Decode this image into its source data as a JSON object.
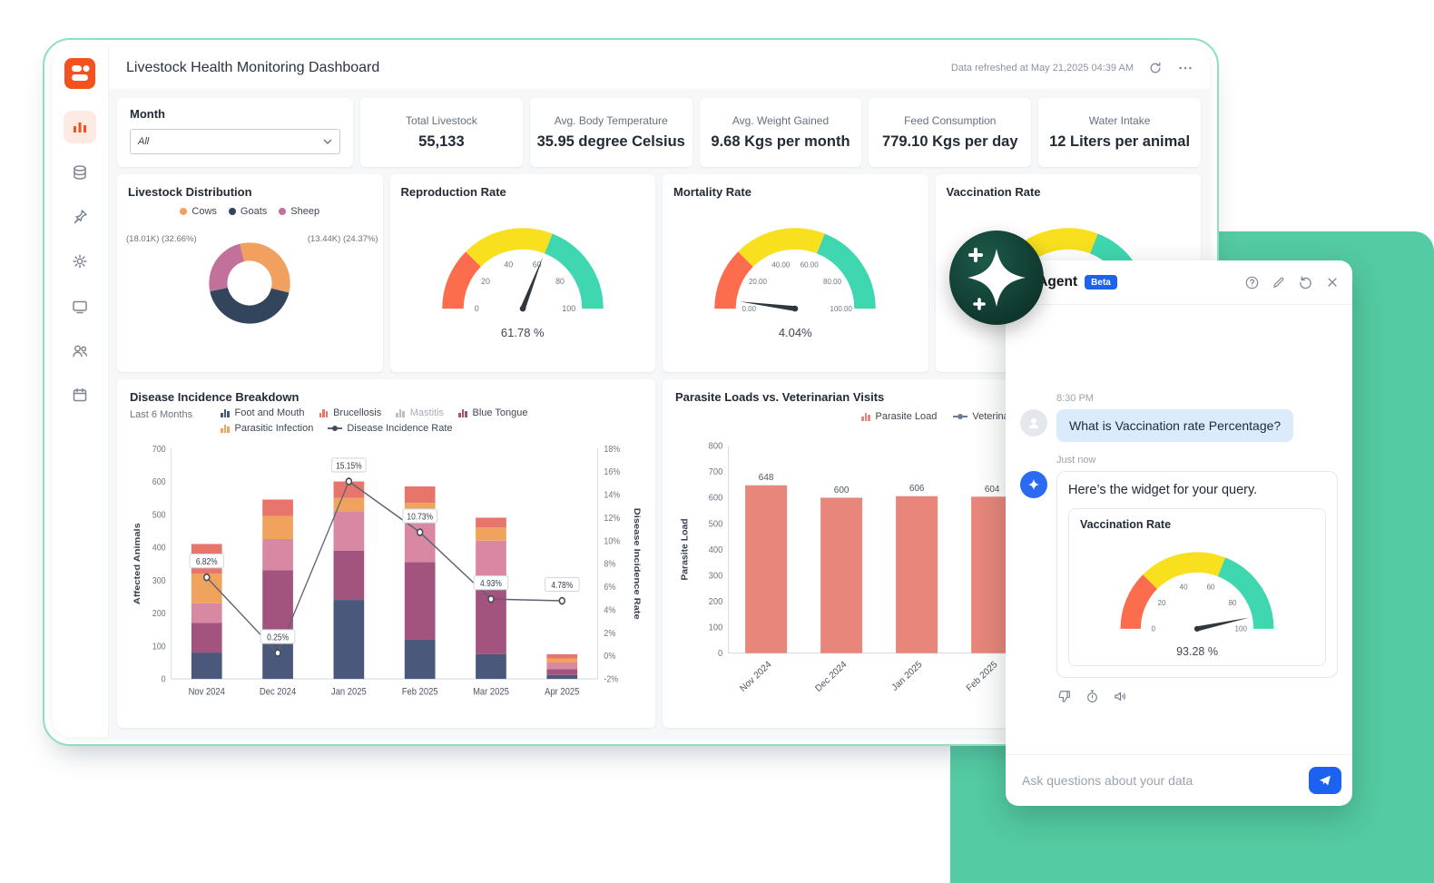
{
  "window": {
    "title": "Livestock Health Monitoring Dashboard",
    "refreshed": "Data refreshed at May 21,2025 04:39 AM"
  },
  "filters": {
    "month_label": "Month",
    "month_value": "All"
  },
  "kpis": [
    {
      "label": "Total Livestock",
      "value": "55,133"
    },
    {
      "label": "Avg. Body Temperature",
      "value": "35.95 degree Celsius"
    },
    {
      "label": "Avg. Weight Gained",
      "value": "9.68 Kgs per month"
    },
    {
      "label": "Feed Consumption",
      "value": "779.10 Kgs per day"
    },
    {
      "label": "Water Intake",
      "value": "12 Liters per animal"
    }
  ],
  "cards": {
    "distribution": "Livestock Distribution",
    "reproduction": "Reproduction Rate",
    "mortality": "Mortality Rate",
    "vaccination": "Vaccination Rate",
    "disease": "Disease Incidence Breakdown",
    "disease_subtitle": "Last 6 Months",
    "parasite": "Parasite Loads vs. Veterinarian Visits"
  },
  "chart_data": {
    "livestock_distribution": {
      "type": "pie",
      "title": "Livestock Distribution",
      "slices": [
        {
          "label": "Cows",
          "percent": 32.66,
          "count_label": "(18.01K) (32.66%)",
          "color": "#F2A05F"
        },
        {
          "label": "Goats",
          "percent": 42.97,
          "color": "#32455C"
        },
        {
          "label": "Sheep",
          "percent": 24.37,
          "count_label": "(13.44K) (24.37%)",
          "color": "#C2719A"
        }
      ],
      "callout_left": "(18.01K) (32.66%)",
      "callout_right": "(13.44K) (24.37%)"
    },
    "reproduction_rate": {
      "type": "gauge",
      "title": "Reproduction Rate",
      "min": 0,
      "max": 100,
      "value": 61.78,
      "value_text": "61.78 %",
      "ticks": [
        "0",
        "20",
        "40",
        "60",
        "80",
        "100"
      ],
      "bands": [
        {
          "to": 25,
          "color": "#FB6D4C"
        },
        {
          "to": 62,
          "color": "#F8E01E"
        },
        {
          "to": 100,
          "color": "#3ED7AF"
        }
      ]
    },
    "mortality_rate": {
      "type": "gauge",
      "title": "Mortality Rate",
      "min": 0,
      "max": 100,
      "value": 4.04,
      "value_text": "4.04%",
      "ticks": [
        "0.00",
        "20.00",
        "40.00",
        "60.00",
        "80.00",
        "100.00"
      ],
      "bands": [
        {
          "to": 25,
          "color": "#FB6D4C"
        },
        {
          "to": 62,
          "color": "#F8E01E"
        },
        {
          "to": 100,
          "color": "#3ED7AF"
        }
      ]
    },
    "vaccination_rate": {
      "type": "gauge",
      "title": "Vaccination Rate",
      "min": 0,
      "max": 100,
      "value": 93.28,
      "value_text": "93.28 %",
      "ticks": [
        "0",
        "20",
        "40",
        "60",
        "80",
        "100"
      ],
      "bands": [
        {
          "to": 25,
          "color": "#FB6D4C"
        },
        {
          "to": 62,
          "color": "#F8E01E"
        },
        {
          "to": 100,
          "color": "#3ED7AF"
        }
      ]
    },
    "disease_incidence": {
      "type": "bar",
      "title": "Disease Incidence Breakdown",
      "subtitle": "Last 6 Months",
      "categories": [
        "Nov 2024",
        "Dec 2024",
        "Jan 2025",
        "Feb 2025",
        "Mar 2025",
        "Apr 2025"
      ],
      "series": [
        {
          "name": "Foot and Mouth",
          "color": "#49587B",
          "values": [
            80,
            115,
            240,
            120,
            75,
            12
          ]
        },
        {
          "name": "Blue Tongue",
          "color": "#A2547F",
          "values": [
            90,
            215,
            150,
            235,
            235,
            18
          ]
        },
        {
          "name": "Mastitis",
          "color": "#D888A2",
          "values": [
            60,
            95,
            120,
            125,
            110,
            20
          ],
          "muted_legend": true
        },
        {
          "name": "Parasitic Infection",
          "color": "#F0A35C",
          "values": [
            90,
            70,
            40,
            55,
            40,
            12
          ]
        },
        {
          "name": "Brucellosis",
          "color": "#E8756B",
          "values": [
            90,
            50,
            50,
            50,
            30,
            13
          ]
        }
      ],
      "line": {
        "name": "Disease Incidence Rate",
        "color": "#5B6270",
        "values": [
          6.82,
          0.25,
          15.15,
          10.73,
          4.93,
          4.78
        ],
        "labels": [
          "6.82%",
          "0.25%",
          "15.15%",
          "10.73%",
          "4.93%",
          "4.78%"
        ]
      },
      "legend_order": [
        "Foot and Mouth",
        "Brucellosis",
        "Mastitis",
        "Blue Tongue",
        "Parasitic Infection",
        "Disease Incidence Rate"
      ],
      "ylabel_left": "Affected Animals",
      "ylabel_right": "Disease Incidence Rate",
      "ylim_left": [
        0,
        700
      ],
      "ystep_left": 100,
      "ylim_right": [
        -2,
        18
      ],
      "ystep_right": 2
    },
    "parasite_loads": {
      "type": "bar",
      "title": "Parasite Loads vs. Veterinarian Visits",
      "categories": [
        "Nov 2024",
        "Dec 2024",
        "Jan 2025",
        "Feb 2025"
      ],
      "values": [
        648,
        600,
        606,
        604
      ],
      "slot_count": 6,
      "bar_color": "#E8867B",
      "ylabel": "Parasite Load",
      "ylim": [
        0,
        800
      ],
      "ystep": 100,
      "legend": [
        {
          "label": "Parasite Load",
          "kind": "bar",
          "color": "#E8867B"
        },
        {
          "label": "Veterinarian Visits",
          "kind": "line",
          "color": "#6B7C93"
        }
      ]
    },
    "ai_vaccination_rate": {
      "type": "gauge",
      "title": "Vaccination Rate",
      "min": 0,
      "max": 100,
      "value": 93.28,
      "value_text": "93.28 %",
      "ticks": [
        "0",
        "20",
        "40",
        "60",
        "80",
        "100"
      ],
      "bands": [
        {
          "to": 25,
          "color": "#FB6D4C"
        },
        {
          "to": 62,
          "color": "#F8E01E"
        },
        {
          "to": 100,
          "color": "#3ED7AF"
        }
      ]
    }
  },
  "ai_panel": {
    "title": "AI Agent",
    "badge": "Beta",
    "user_time": "8:30 PM",
    "user_message": "What is Vaccination rate Percentage?",
    "ai_time": "Just now",
    "ai_message": "Here’s the widget for your query.",
    "widget_title": "Vaccination Rate",
    "input_placeholder": "Ask questions about your data"
  },
  "colors": {
    "accent_green": "#54CBA2",
    "brand_orange": "#F4511E",
    "ai_blue": "#1B62F0"
  }
}
